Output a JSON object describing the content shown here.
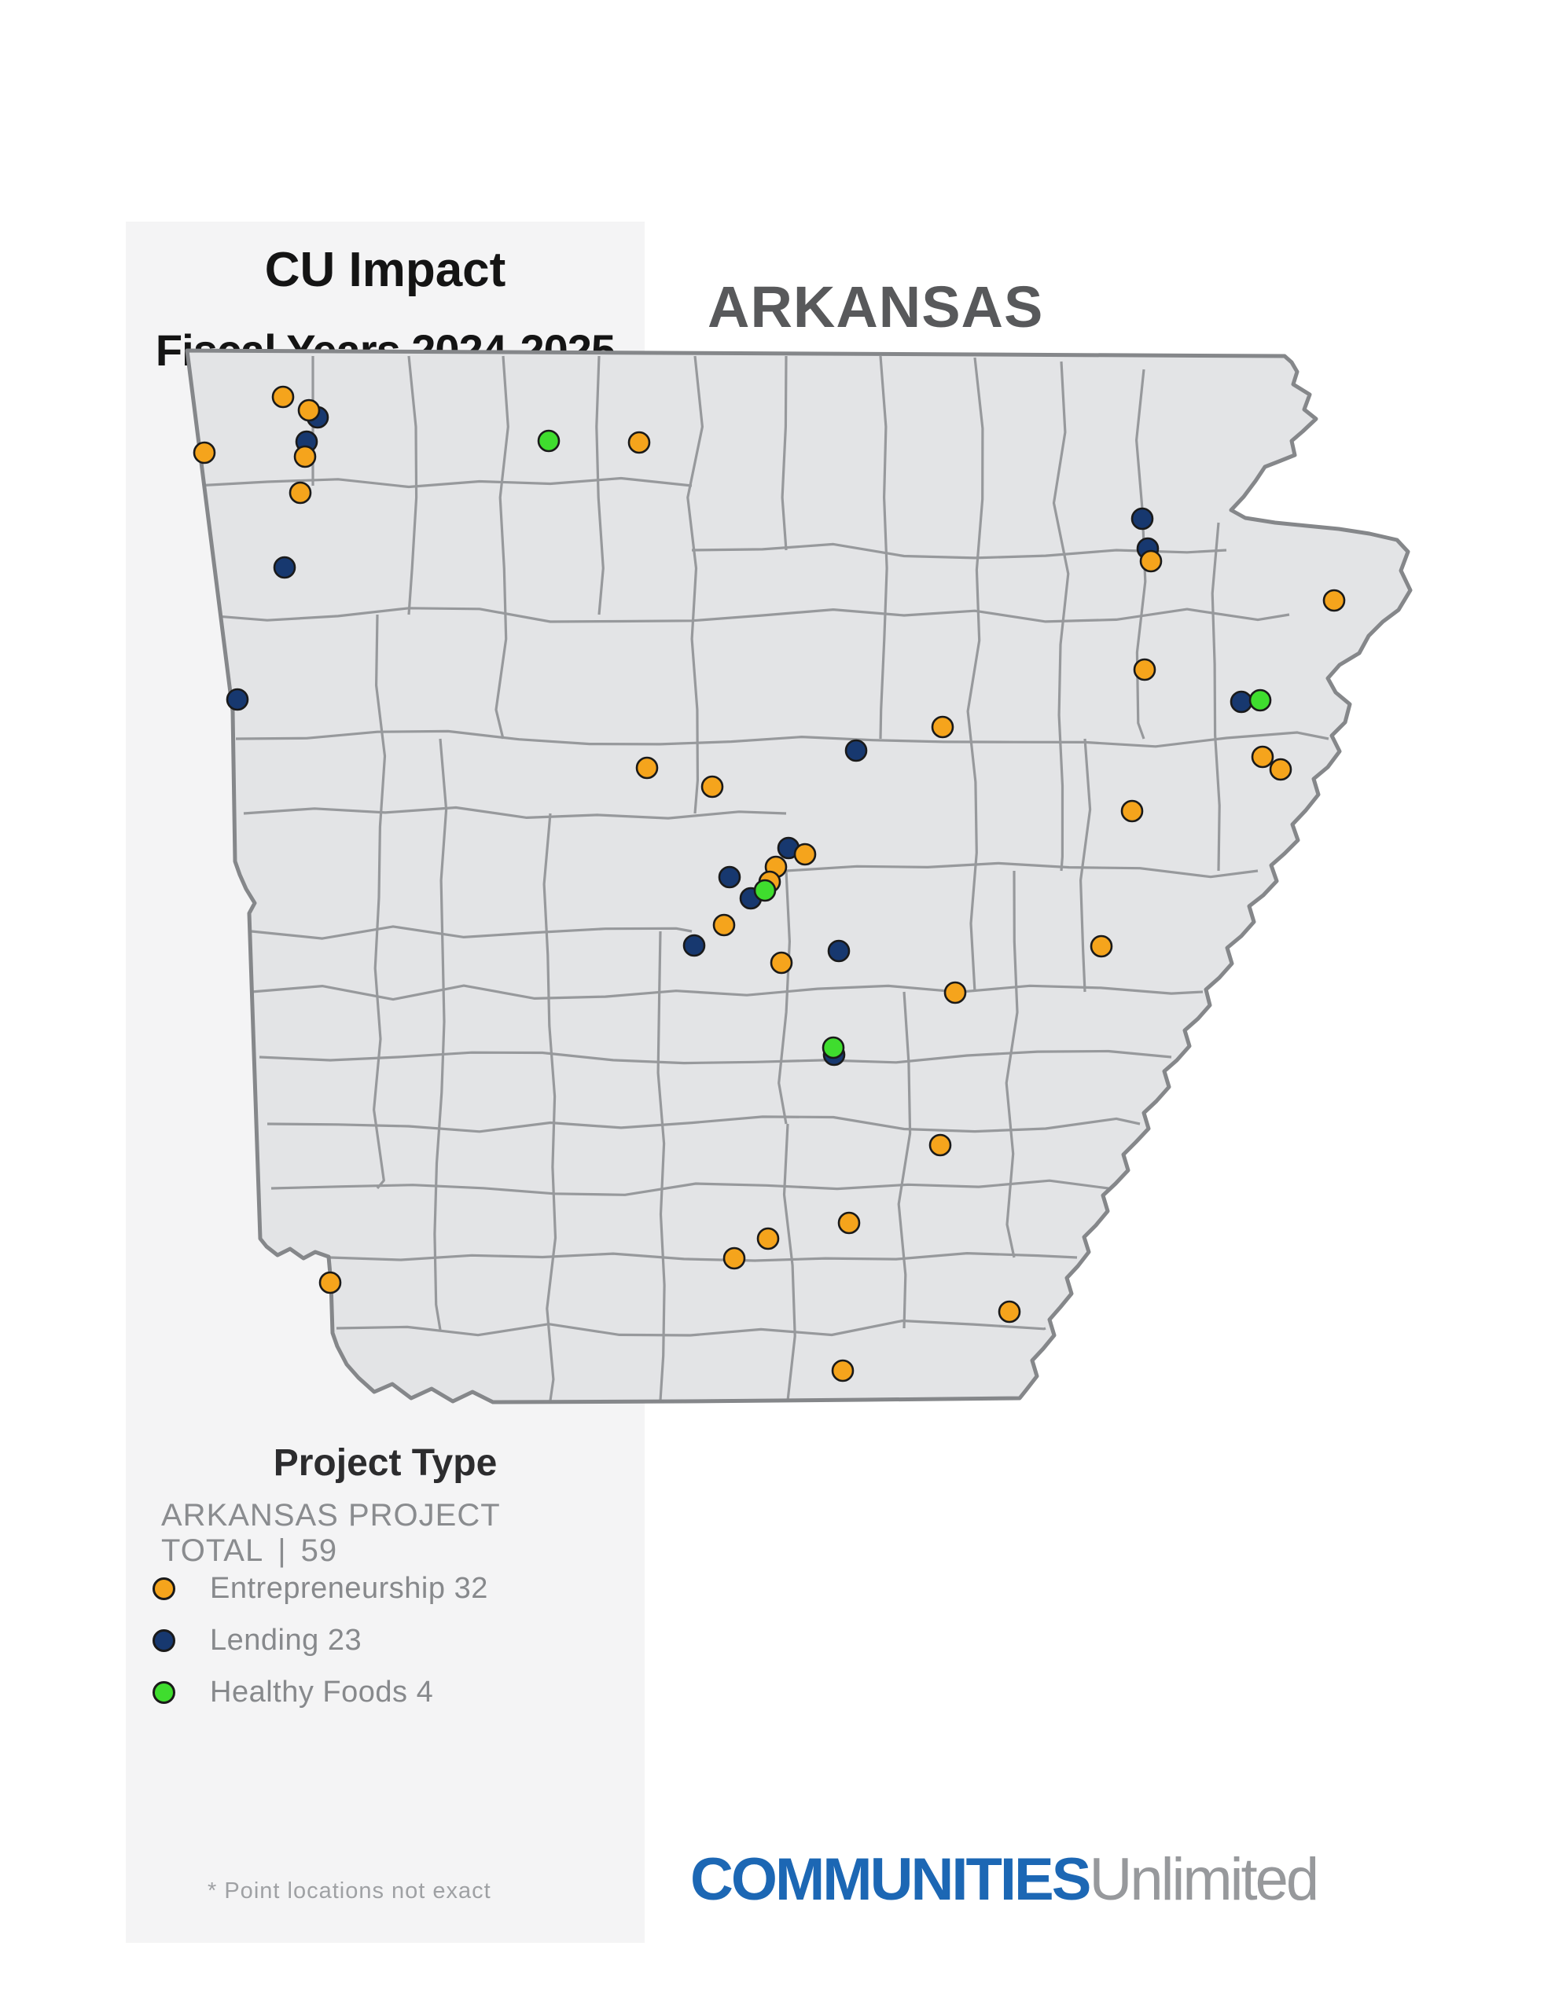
{
  "title": {
    "line1": "CU Impact",
    "line2": "Fiscal Years 2024-2025"
  },
  "state_heading": "ARKANSAS",
  "legend": {
    "heading": "Project Type",
    "total_label": "ARKANSAS PROJECT TOTAL",
    "total_separator": "|",
    "total_value": "59",
    "items": [
      {
        "id": "entrepreneurship",
        "label": "Entrepreneurship",
        "count": "32",
        "color": "#F5A41C"
      },
      {
        "id": "lending",
        "label": "Lending",
        "count": "23",
        "color": "#17386F"
      },
      {
        "id": "healthy_foods",
        "label": "Healthy Foods",
        "count": "4",
        "color": "#3FDD2E"
      }
    ]
  },
  "footnote": "* Point locations not exact",
  "logo": {
    "bold": "COMMUNITIES",
    "light": "Unlimited",
    "bold_color": "#1C67B4",
    "light_color": "#97999C"
  },
  "map": {
    "label": "Arkansas county map with project location markers",
    "marker_radius": 13,
    "marker_outline": "#1A1A1A",
    "fill": "#E3E4E6",
    "county_border": "#97999C",
    "state_border": "#85878A",
    "panel_color": "#F4F4F5",
    "background": "#FFFFFF",
    "markers": {
      "lending": [
        [
          404,
          531
        ],
        [
          390,
          562
        ],
        [
          362,
          722
        ],
        [
          302,
          890
        ],
        [
          1453,
          660
        ],
        [
          1460,
          698
        ],
        [
          1579,
          893
        ],
        [
          1089,
          955
        ],
        [
          1003,
          1079
        ],
        [
          928,
          1116
        ],
        [
          955,
          1143
        ],
        [
          883,
          1203
        ],
        [
          1067,
          1210
        ],
        [
          1061,
          1342
        ]
      ],
      "entrepreneurship": [
        [
          360,
          505
        ],
        [
          393,
          522
        ],
        [
          388,
          581
        ],
        [
          382,
          627
        ],
        [
          260,
          576
        ],
        [
          813,
          563
        ],
        [
          1464,
          714
        ],
        [
          1697,
          764
        ],
        [
          1456,
          852
        ],
        [
          1606,
          963
        ],
        [
          1629,
          979
        ],
        [
          1440,
          1032
        ],
        [
          1401,
          1204
        ],
        [
          1199,
          925
        ],
        [
          823,
          977
        ],
        [
          906,
          1001
        ],
        [
          1024,
          1087
        ],
        [
          987,
          1103
        ],
        [
          979,
          1122
        ],
        [
          921,
          1177
        ],
        [
          994,
          1225
        ],
        [
          1215,
          1263
        ],
        [
          1196,
          1457
        ],
        [
          1080,
          1556
        ],
        [
          977,
          1576
        ],
        [
          934,
          1601
        ],
        [
          1072,
          1744
        ],
        [
          420,
          1632
        ],
        [
          1284,
          1669
        ]
      ],
      "healthy_foods": [
        [
          698,
          561
        ],
        [
          1603,
          891
        ],
        [
          973,
          1133
        ],
        [
          1060,
          1333
        ]
      ]
    }
  }
}
